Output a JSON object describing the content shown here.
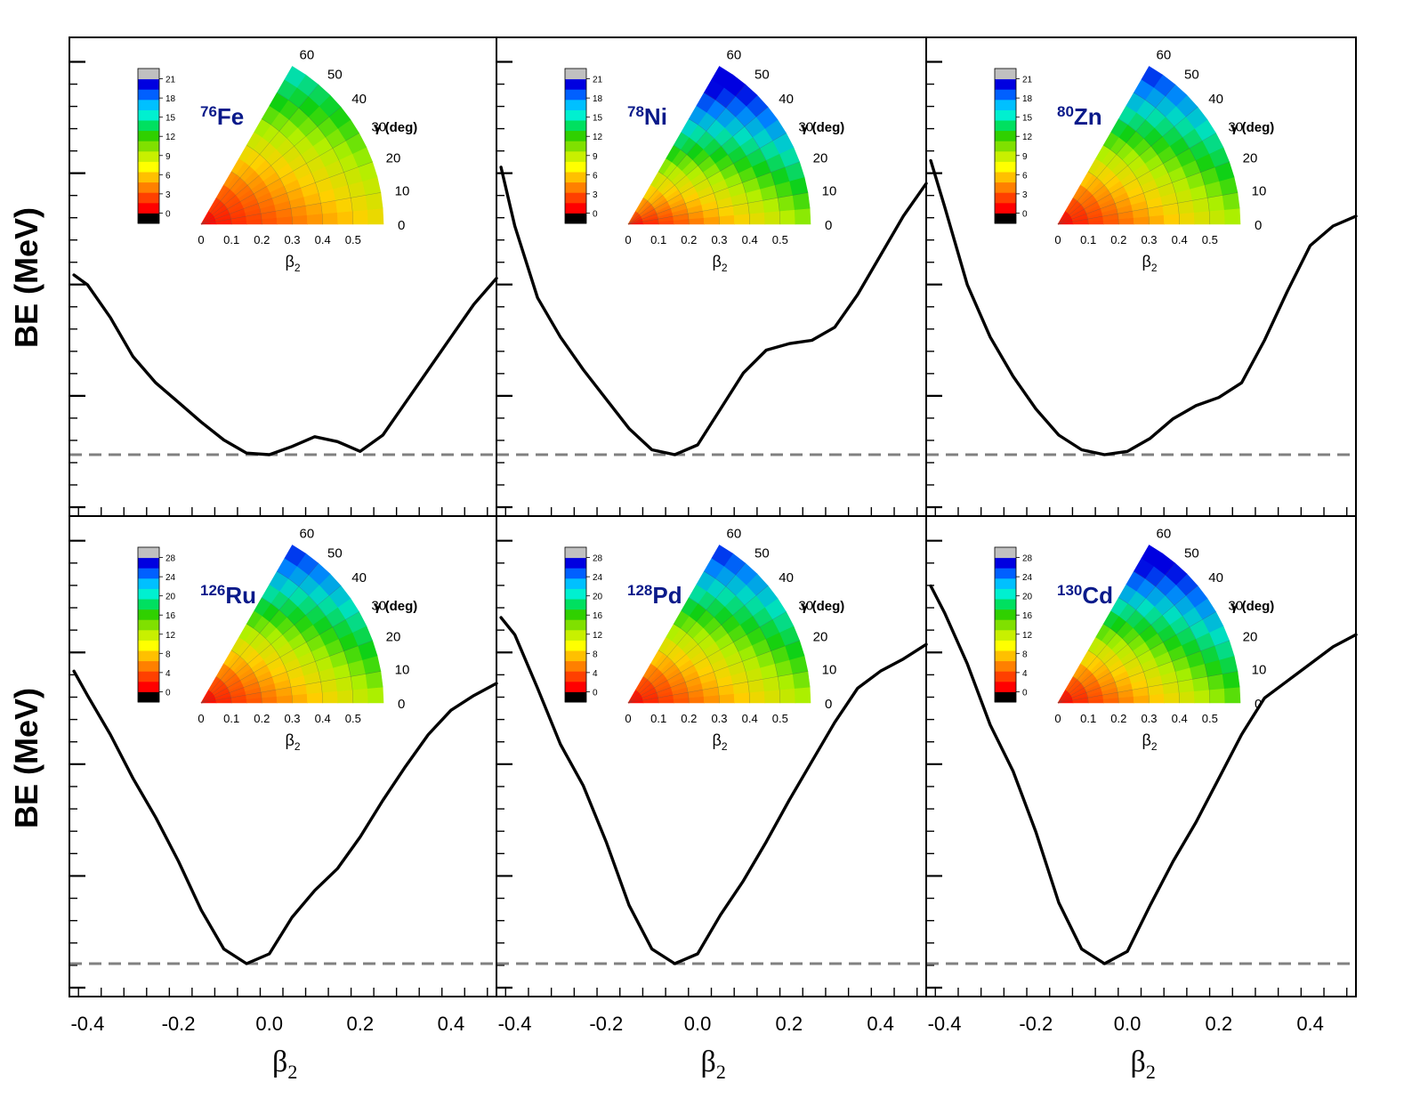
{
  "y_label": "BE (MeV)",
  "x_label_symbol": "β",
  "x_label_sub": "2",
  "x_ticks": [
    -0.4,
    -0.2,
    0.0,
    0.2,
    0.4
  ],
  "x_tick_labels": [
    "-0.4",
    "-0.2",
    "0.0",
    "0.2",
    "0.4"
  ],
  "inset_common": {
    "gamma_label": "γ (deg)",
    "gamma_ticks": [
      "0",
      "10",
      "20",
      "30",
      "40",
      "50",
      "60"
    ],
    "beta_ticks": [
      "0",
      "0.1",
      "0.2",
      "0.3",
      "0.4",
      "0.5"
    ],
    "beta_label_symbol": "β",
    "beta_label_sub": "2",
    "palette": [
      "#000000",
      "#ff0000",
      "#ff4000",
      "#ff8000",
      "#ffc000",
      "#ffff00",
      "#c8f000",
      "#80e000",
      "#30d000",
      "#00e060",
      "#00f0d0",
      "#00c0ff",
      "#0060ff",
      "#0000e0",
      "#c0c0c0"
    ]
  },
  "chart_data": [
    {
      "type": "line",
      "nucleus_mass": "76",
      "nucleus_symbol": "Fe",
      "x": [
        -0.43,
        -0.4,
        -0.35,
        -0.3,
        -0.25,
        -0.2,
        -0.15,
        -0.1,
        -0.05,
        0.0,
        0.05,
        0.1,
        0.15,
        0.2,
        0.25,
        0.3,
        0.35,
        0.4,
        0.45,
        0.5
      ],
      "y": [
        5.5,
        5.2,
        4.2,
        3.0,
        2.2,
        1.6,
        1.0,
        0.45,
        0.05,
        0.0,
        0.25,
        0.55,
        0.4,
        0.1,
        0.6,
        1.6,
        2.6,
        3.6,
        4.6,
        5.4
      ],
      "colorbar_ticks": [
        "0",
        "3",
        "6",
        "9",
        "12",
        "15",
        "18",
        "21"
      ],
      "colorbar_max": 21
    },
    {
      "type": "line",
      "nucleus_mass": "78",
      "nucleus_symbol": "Ni",
      "x": [
        -0.43,
        -0.4,
        -0.35,
        -0.3,
        -0.25,
        -0.2,
        -0.15,
        -0.1,
        -0.05,
        0.0,
        0.05,
        0.1,
        0.15,
        0.2,
        0.25,
        0.3,
        0.35,
        0.4,
        0.45,
        0.5
      ],
      "y": [
        8.8,
        7.0,
        4.8,
        3.6,
        2.6,
        1.7,
        0.8,
        0.15,
        0.0,
        0.3,
        1.4,
        2.5,
        3.2,
        3.4,
        3.5,
        3.9,
        4.9,
        6.1,
        7.3,
        8.3
      ],
      "colorbar_ticks": [
        "0",
        "3",
        "6",
        "9",
        "12",
        "15",
        "18",
        "21"
      ],
      "colorbar_max": 21
    },
    {
      "type": "line",
      "nucleus_mass": "80",
      "nucleus_symbol": "Zn",
      "x": [
        -0.43,
        -0.4,
        -0.35,
        -0.3,
        -0.25,
        -0.2,
        -0.15,
        -0.1,
        -0.05,
        0.0,
        0.05,
        0.1,
        0.15,
        0.2,
        0.25,
        0.3,
        0.35,
        0.4,
        0.45,
        0.5
      ],
      "y": [
        9.0,
        7.6,
        5.2,
        3.6,
        2.4,
        1.4,
        0.6,
        0.15,
        0.0,
        0.1,
        0.5,
        1.1,
        1.5,
        1.75,
        2.2,
        3.5,
        5.0,
        6.4,
        7.0,
        7.3
      ],
      "colorbar_ticks": [
        "0",
        "3",
        "6",
        "9",
        "12",
        "15",
        "18",
        "21"
      ],
      "colorbar_max": 21
    },
    {
      "type": "line",
      "nucleus_mass": "126",
      "nucleus_symbol": "Ru",
      "x": [
        -0.43,
        -0.4,
        -0.35,
        -0.3,
        -0.25,
        -0.2,
        -0.15,
        -0.1,
        -0.05,
        0.0,
        0.05,
        0.1,
        0.15,
        0.2,
        0.25,
        0.3,
        0.35,
        0.4,
        0.45,
        0.5
      ],
      "y": [
        12.0,
        11.0,
        9.4,
        7.6,
        6.0,
        4.2,
        2.2,
        0.6,
        0.0,
        0.4,
        1.9,
        3.0,
        3.9,
        5.2,
        6.7,
        8.1,
        9.4,
        10.4,
        11.0,
        11.5
      ],
      "colorbar_ticks": [
        "0",
        "4",
        "8",
        "12",
        "16",
        "20",
        "24",
        "28"
      ],
      "colorbar_max": 28
    },
    {
      "type": "line",
      "nucleus_mass": "128",
      "nucleus_symbol": "Pd",
      "x": [
        -0.43,
        -0.4,
        -0.35,
        -0.3,
        -0.25,
        -0.2,
        -0.15,
        -0.1,
        -0.05,
        0.0,
        0.05,
        0.1,
        0.15,
        0.2,
        0.25,
        0.3,
        0.35,
        0.4,
        0.45,
        0.5
      ],
      "y": [
        14.2,
        13.5,
        11.3,
        9.0,
        7.3,
        5.0,
        2.4,
        0.6,
        0.0,
        0.4,
        2.0,
        3.4,
        5.0,
        6.7,
        8.3,
        9.9,
        11.3,
        12.0,
        12.5,
        13.1
      ],
      "colorbar_ticks": [
        "0",
        "4",
        "8",
        "12",
        "16",
        "20",
        "24",
        "28"
      ],
      "colorbar_max": 28
    },
    {
      "type": "line",
      "nucleus_mass": "130",
      "nucleus_symbol": "Cd",
      "x": [
        -0.43,
        -0.4,
        -0.35,
        -0.3,
        -0.25,
        -0.2,
        -0.15,
        -0.1,
        -0.05,
        0.0,
        0.05,
        0.1,
        0.15,
        0.2,
        0.25,
        0.3,
        0.35,
        0.4,
        0.45,
        0.5
      ],
      "y": [
        15.5,
        14.4,
        12.3,
        9.8,
        7.9,
        5.4,
        2.5,
        0.6,
        0.0,
        0.5,
        2.4,
        4.2,
        5.8,
        7.6,
        9.4,
        10.9,
        11.6,
        12.3,
        13.0,
        13.5
      ],
      "colorbar_ticks": [
        "0",
        "4",
        "8",
        "12",
        "16",
        "20",
        "24",
        "28"
      ],
      "colorbar_max": 28
    }
  ]
}
